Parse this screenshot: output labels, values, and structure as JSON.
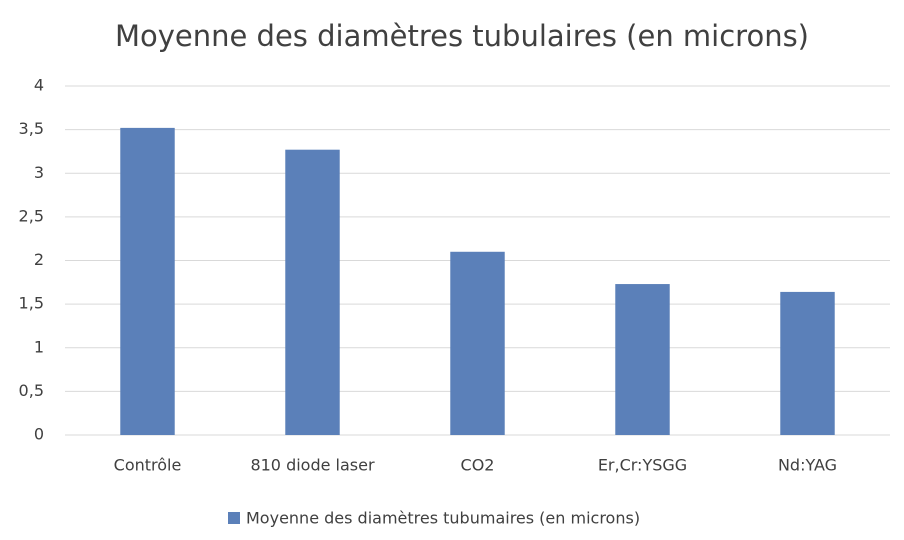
{
  "chart_data": {
    "type": "bar",
    "title": "Moyenne des diamètres tubulaires (en microns)",
    "categories": [
      "Contrôle",
      "810 diode laser",
      "CO2",
      "Er,Cr:YSGG",
      "Nd:YAG"
    ],
    "series": [
      {
        "name": "Moyenne des diamètres tubumaires (en microns)",
        "color": "#5b80b9",
        "values": [
          3.52,
          3.27,
          2.1,
          1.73,
          1.64
        ]
      }
    ],
    "ylim": [
      0,
      4
    ],
    "yticks": [
      0,
      {
        "value": 0.5,
        "label": "0,5"
      },
      1,
      {
        "value": 1.5,
        "label": "1,5"
      },
      2,
      {
        "value": 2.5,
        "label": "2,5"
      },
      3,
      {
        "value": 3.5,
        "label": "3,5"
      },
      4
    ],
    "grid": true,
    "legend": "bottom"
  }
}
